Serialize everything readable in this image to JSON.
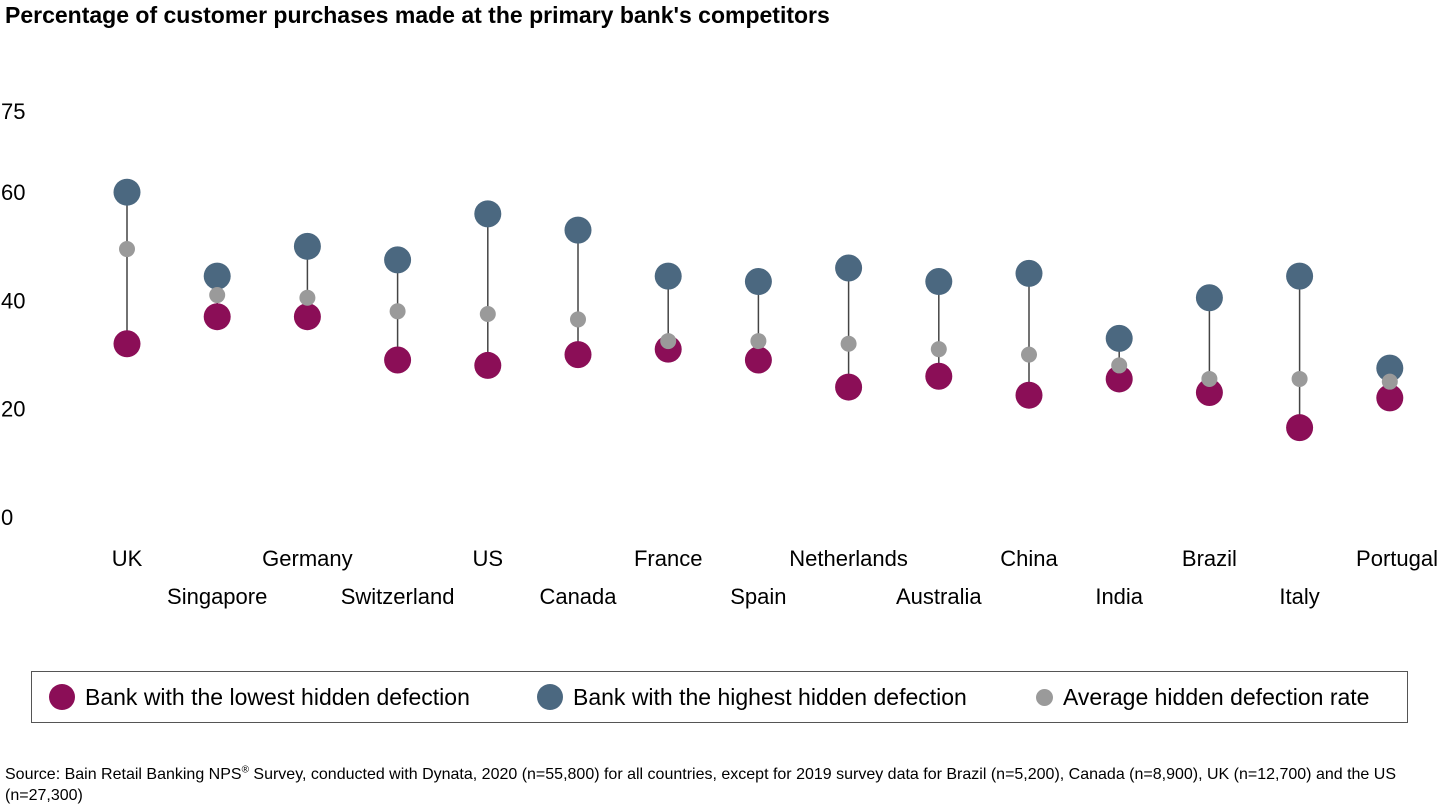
{
  "title": "Percentage of customer purchases made at the primary bank's competitors",
  "colors": {
    "low": "#8b0e57",
    "high": "#4b6880",
    "avg": "#9a9a9a",
    "line": "#444444"
  },
  "legend": {
    "low_label": "Bank with the lowest hidden defection",
    "high_label": "Bank with the highest hidden defection",
    "avg_label": "Average hidden defection rate"
  },
  "source": {
    "prefix": "Source: Bain Retail Banking NPS",
    "mark": "®",
    "suffix": " Survey, conducted with Dynata, 2020 (n=55,800) for all countries, except for 2019 survey data for Brazil (n=5,200), Canada (n=8,900), UK (n=12,700) and the US (n=27,300)"
  },
  "chart_data": {
    "type": "scatter",
    "title": "Percentage of customer purchases made at the primary bank's competitors",
    "categories": [
      "UK",
      "Singapore",
      "Germany",
      "Switzerland",
      "US",
      "Canada",
      "France",
      "Spain",
      "Netherlands",
      "Australia",
      "China",
      "India",
      "Brazil",
      "Italy",
      "Portugal"
    ],
    "yticks": [
      0,
      20,
      40,
      60,
      75
    ],
    "ylim": [
      0,
      75
    ],
    "grid": false,
    "legend_position": "bottom",
    "series": [
      {
        "name": "Bank with the lowest hidden defection",
        "values": [
          32,
          37,
          37,
          29,
          28,
          30,
          31,
          29,
          24,
          26,
          22.5,
          25.5,
          23,
          16.5,
          22
        ]
      },
      {
        "name": "Bank with the highest hidden defection",
        "values": [
          60,
          44.5,
          50,
          47.5,
          56,
          53,
          44.5,
          43.5,
          46,
          43.5,
          45,
          33,
          40.5,
          44.5,
          27.5
        ]
      },
      {
        "name": "Average hidden defection rate",
        "values": [
          49.5,
          41,
          40.5,
          38,
          37.5,
          36.5,
          32.5,
          32.5,
          32,
          31,
          30,
          28,
          25.5,
          25.5,
          25
        ]
      }
    ]
  }
}
